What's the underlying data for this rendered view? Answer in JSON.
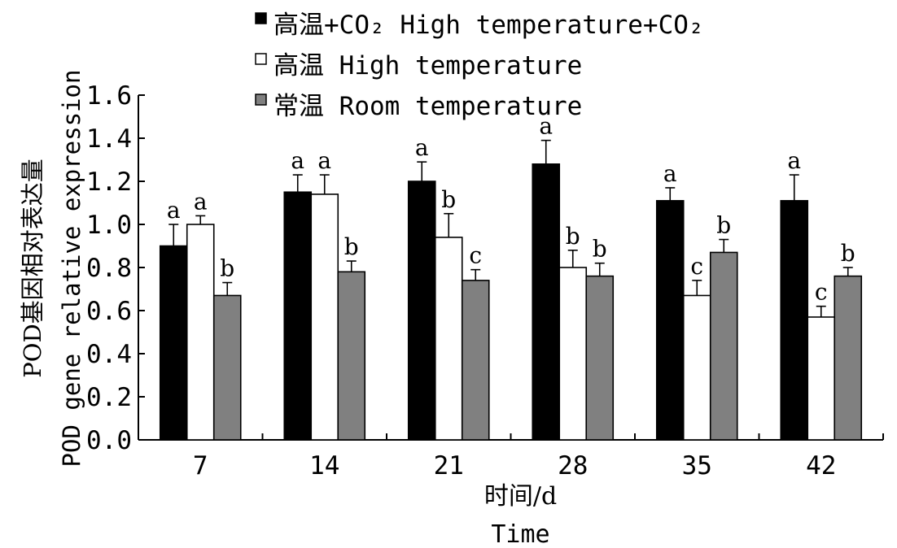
{
  "chart_data": {
    "type": "bar",
    "title": "",
    "xlabel_cn": "时间/d",
    "xlabel_en": "Time",
    "ylabel_cn": "POD基因相对表达量",
    "ylabel_en": "POD gene relative expression",
    "ylim": [
      0,
      1.6
    ],
    "yticks": [
      "0.0",
      "0.2",
      "0.4",
      "0.6",
      "0.8",
      "1.0",
      "1.2",
      "1.4",
      "1.6"
    ],
    "categories": [
      "7",
      "14",
      "21",
      "28",
      "35",
      "42"
    ],
    "legend_position": "top",
    "grid": false,
    "series": [
      {
        "name": "高温+CO₂ High temperature+CO₂",
        "color": "#000000",
        "values": [
          0.9,
          1.15,
          1.2,
          1.28,
          1.11,
          1.11
        ],
        "errors": [
          0.1,
          0.08,
          0.09,
          0.11,
          0.06,
          0.12
        ],
        "labels": [
          "a",
          "a",
          "a",
          "a",
          "a",
          "a"
        ]
      },
      {
        "name": "高温 High temperature",
        "color": "#ffffff",
        "values": [
          1.0,
          1.14,
          0.94,
          0.8,
          0.67,
          0.57
        ],
        "errors": [
          0.04,
          0.09,
          0.11,
          0.08,
          0.07,
          0.05
        ],
        "labels": [
          "a",
          "a",
          "b",
          "b",
          "c",
          "c"
        ]
      },
      {
        "name": "常温 Room temperature",
        "color": "#808080",
        "values": [
          0.67,
          0.78,
          0.74,
          0.76,
          0.87,
          0.76
        ],
        "errors": [
          0.06,
          0.05,
          0.05,
          0.06,
          0.06,
          0.04
        ],
        "labels": [
          "b",
          "b",
          "c",
          "b",
          "b",
          "b"
        ]
      }
    ]
  }
}
